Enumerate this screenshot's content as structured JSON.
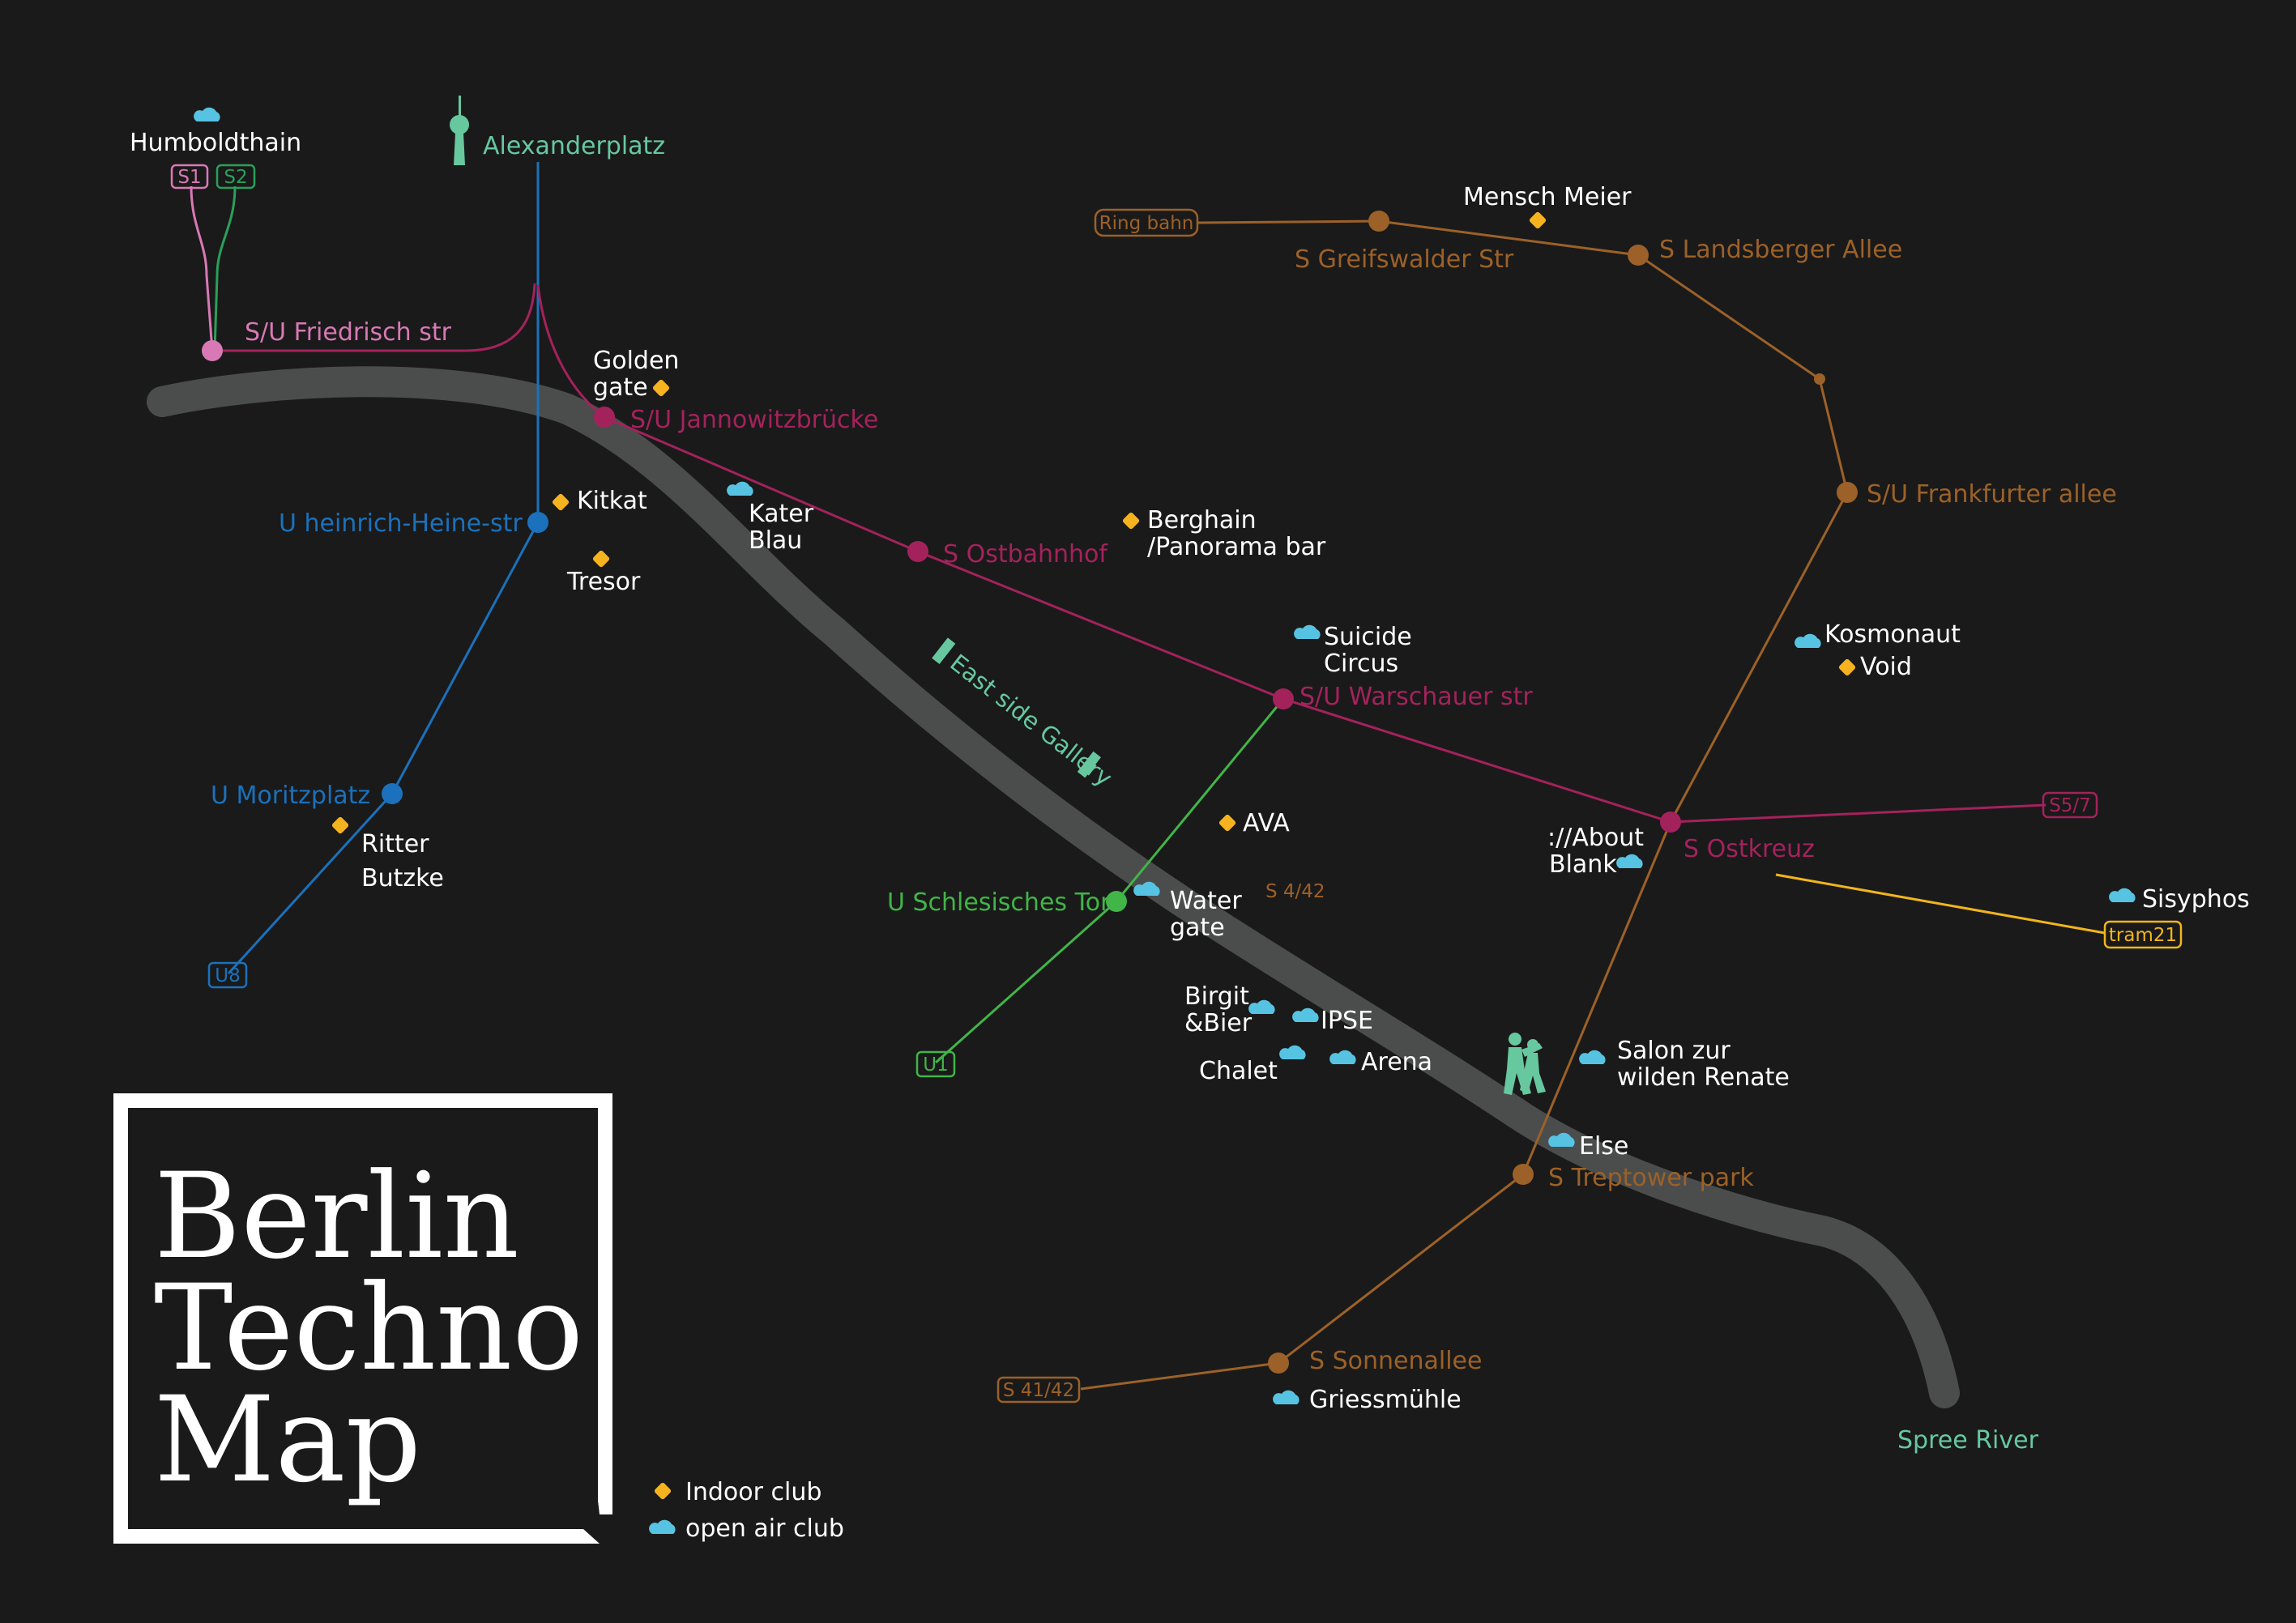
{
  "title": [
    "Berlin",
    "Techno",
    "Map"
  ],
  "colors": {
    "background": "#1a1a1a",
    "river": "#4b4d4d",
    "s_line": "#a4225c",
    "ring_line": "#9c6128",
    "u8_line": "#1b71bb",
    "u1_line": "#41b548",
    "s1_line": "#d879b5",
    "s2_line": "#2aa05a",
    "tram_line": "#f2b51c",
    "mint": "#67c8a0",
    "indoor": "#f6b320",
    "open_air": "#57c3e2",
    "text": "#ffffff"
  },
  "legend": {
    "indoor": {
      "label": "Indoor club",
      "icon": "diamond-icon"
    },
    "open_air": {
      "label": "open air club",
      "icon": "cloud-icon"
    }
  },
  "river": {
    "label": "Spree River"
  },
  "landmarks": {
    "alexanderplatz": {
      "label": "Alexanderplatz",
      "icon": "tv-tower-icon"
    },
    "east_side_gallery": {
      "label": "East side Gallery"
    },
    "treptower": {
      "icon": "soviet-memorial-icon"
    }
  },
  "line_badges": {
    "s1": "S1",
    "s2": "S2",
    "u8": "U8",
    "u1": "U1",
    "ring": "Ring bahn",
    "s57": "S5/7",
    "tram21": "tram21",
    "s4142": "S 41/42",
    "s442": "S 4/42"
  },
  "stations": {
    "friedrichstr": "S/U Friedrisch str",
    "jannowitz": "S/U Jannowitzbrücke",
    "heine": "U heinrich-Heine-str",
    "moritzplatz": "U Moritzplatz",
    "ostbahnhof": "S Ostbahnhof",
    "warschauer": "S/U Warschauer str",
    "schlesisches": "U Schlesisches Tor",
    "ostkreuz": "S Ostkreuz",
    "greifswalder": "S Greifswalder Str",
    "landsberger": "S Landsberger Allee",
    "frankfurter": "S/U Frankfurter allee",
    "treptower": "S Treptower park",
    "sonnenallee": "S Sonnenallee"
  },
  "clubs": {
    "humboldthain": "Humboldthain",
    "golden_gate": [
      "Golden",
      "gate"
    ],
    "kitkat": "Kitkat",
    "tresor": "Tresor",
    "kater_blau": [
      "Kater",
      "Blau"
    ],
    "berghain": [
      "Berghain",
      "/Panorama bar"
    ],
    "ritter_butzke": [
      "Ritter",
      "Butzke"
    ],
    "suicide_circus": [
      "Suicide",
      "Circus"
    ],
    "ava": "AVA",
    "watergate": [
      "Water",
      "gate"
    ],
    "mensch_meier": "Mensch Meier",
    "kosmonaut": "Kosmonaut",
    "void": "Void",
    "about_blank": [
      "://About",
      "Blank"
    ],
    "sisyphos": "Sisyphos",
    "birgit_bier": [
      "Birgit",
      "&Bier"
    ],
    "ipse": "IPSE",
    "chalet": "Chalet",
    "arena": "Arena",
    "salon": [
      "Salon zur",
      "wilden Renate"
    ],
    "else": "Else",
    "griessmuehle": "Griessmühle"
  }
}
